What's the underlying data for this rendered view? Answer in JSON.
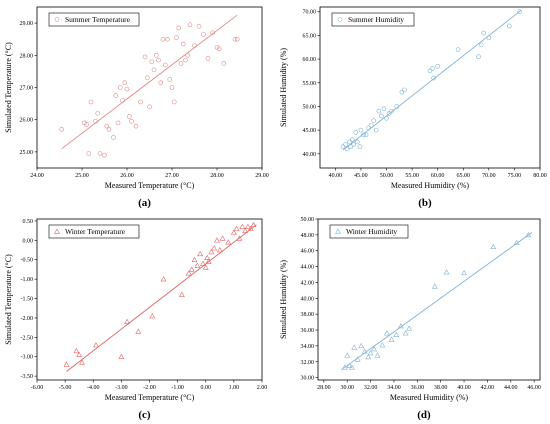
{
  "chart_data": [
    {
      "id": "a",
      "type": "scatter",
      "panel_label": "(a)",
      "xlabel": "Measured Temperature (°C)",
      "ylabel": "Simulated Temperature (°C)",
      "xlim": [
        24.0,
        29.0
      ],
      "ylim": [
        24.5,
        29.5
      ],
      "xticks": [
        "24.00",
        "25.00",
        "26.00",
        "27.00",
        "28.00",
        "29.00"
      ],
      "yticks": [
        "25.00",
        "26.00",
        "27.00",
        "28.00",
        "29.00"
      ],
      "xtick_values": [
        24,
        25,
        26,
        27,
        28,
        29
      ],
      "ytick_values": [
        25,
        26,
        27,
        28,
        29
      ],
      "color": "#e08a8a",
      "marker": "circle",
      "legend": "Summer Temperature",
      "fit_line": [
        [
          24.55,
          25.1
        ],
        [
          28.45,
          29.25
        ]
      ],
      "x": [
        24.55,
        25.05,
        25.1,
        25.15,
        25.2,
        25.3,
        25.35,
        25.4,
        25.5,
        25.55,
        25.6,
        25.7,
        25.75,
        25.8,
        25.85,
        25.9,
        25.95,
        26.0,
        26.05,
        26.1,
        26.2,
        26.3,
        26.4,
        26.45,
        26.5,
        26.55,
        26.6,
        26.65,
        26.7,
        26.75,
        26.8,
        26.85,
        26.9,
        26.95,
        27.0,
        27.05,
        27.1,
        27.15,
        27.2,
        27.25,
        27.3,
        27.35,
        27.4,
        27.5,
        27.6,
        27.7,
        27.8,
        27.9,
        28.0,
        28.05,
        28.15,
        28.4,
        28.45
      ],
      "y": [
        25.7,
        25.9,
        25.85,
        24.95,
        26.55,
        25.95,
        26.2,
        24.95,
        24.9,
        25.8,
        25.7,
        25.45,
        26.75,
        25.9,
        27.0,
        26.6,
        27.15,
        26.95,
        26.1,
        25.95,
        25.8,
        26.55,
        27.95,
        27.3,
        26.4,
        27.8,
        27.55,
        28.0,
        27.85,
        27.15,
        28.5,
        27.7,
        28.5,
        27.25,
        27.0,
        26.55,
        28.55,
        28.85,
        27.75,
        28.35,
        27.85,
        28.0,
        28.95,
        28.3,
        28.9,
        28.65,
        27.9,
        28.7,
        28.25,
        28.2,
        27.75,
        28.5,
        28.5
      ]
    },
    {
      "id": "b",
      "type": "scatter",
      "panel_label": "(b)",
      "xlabel": "Measured Humidity (%)",
      "ylabel": "Simulated Humidity (%)",
      "xlim": [
        37.0,
        80.0
      ],
      "ylim": [
        37.0,
        71.0
      ],
      "xticks": [
        "40.00",
        "45.00",
        "50.00",
        "55.00",
        "60.00",
        "65.00",
        "70.00",
        "75.00",
        "80.00"
      ],
      "yticks": [
        "40.00",
        "45.00",
        "50.00",
        "55.00",
        "60.00",
        "65.00",
        "70.00"
      ],
      "xtick_values": [
        40,
        45,
        50,
        55,
        60,
        65,
        70,
        75,
        80
      ],
      "ytick_values": [
        40,
        45,
        50,
        55,
        60,
        65,
        70
      ],
      "color": "#7fb3d5",
      "marker": "circle",
      "legend": "Summer Humidity",
      "fit_line": [
        [
          41.5,
          40.8
        ],
        [
          76.3,
          70.3
        ]
      ],
      "x": [
        41.5,
        42.0,
        42.3,
        42.8,
        43.0,
        43.3,
        43.6,
        44.0,
        44.3,
        44.8,
        45.0,
        45.5,
        46.0,
        46.5,
        47.0,
        47.5,
        48.0,
        48.5,
        49.0,
        49.5,
        50.0,
        50.5,
        51.0,
        52.0,
        53.0,
        53.5,
        58.5,
        59.0,
        59.2,
        60.0,
        64.0,
        68.0,
        68.5,
        69.0,
        70.0,
        74.0,
        76.0
      ],
      "y": [
        41.5,
        42.0,
        41.0,
        42.5,
        41.5,
        43.0,
        42.0,
        44.5,
        42.5,
        41.5,
        45.0,
        44.0,
        44.0,
        45.5,
        46.0,
        47.0,
        45.0,
        49.0,
        48.0,
        49.5,
        47.5,
        48.5,
        49.0,
        50.0,
        53.0,
        53.5,
        57.5,
        58.0,
        56.0,
        58.5,
        62.0,
        60.5,
        63.0,
        65.5,
        64.5,
        67.0,
        70.0
      ]
    },
    {
      "id": "c",
      "type": "scatter",
      "panel_label": "(c)",
      "xlabel": "Measured Temperature (°C)",
      "ylabel": "Simulated Temperature (°C)",
      "xlim": [
        -6.0,
        2.0
      ],
      "ylim": [
        -3.6,
        0.55
      ],
      "xticks": [
        "-6.00",
        "-5.00",
        "-4.00",
        "-3.00",
        "-2.00",
        "-1.00",
        "0.00",
        "1.00",
        "2.00"
      ],
      "yticks": [
        "-3.50",
        "-3.00",
        "-2.50",
        "-2.00",
        "-1.50",
        "-1.00",
        "-0.50",
        "0.00",
        "0.50"
      ],
      "xtick_values": [
        -6,
        -5,
        -4,
        -3,
        -2,
        -1,
        0,
        1,
        2
      ],
      "ytick_values": [
        -3.5,
        -3,
        -2.5,
        -2,
        -1.5,
        -1,
        -0.5,
        0,
        0.5
      ],
      "color": "#e06666",
      "marker": "triangle",
      "legend": "Winter Temperature",
      "fit_line": [
        [
          -4.95,
          -3.38
        ],
        [
          1.8,
          0.4
        ]
      ],
      "x": [
        -4.95,
        -4.6,
        -4.5,
        -4.4,
        -3.9,
        -3.0,
        -2.8,
        -2.4,
        -1.9,
        -1.5,
        -0.85,
        -0.6,
        -0.5,
        -0.4,
        -0.3,
        -0.2,
        -0.1,
        0.0,
        0.05,
        0.1,
        0.2,
        0.3,
        0.4,
        0.5,
        0.6,
        0.8,
        1.0,
        1.1,
        1.2,
        1.3,
        1.4,
        1.5,
        1.6,
        1.7
      ],
      "y": [
        -3.2,
        -2.85,
        -2.95,
        -3.15,
        -2.7,
        -3.0,
        -2.1,
        -2.35,
        -1.95,
        -1.0,
        -1.4,
        -0.85,
        -0.75,
        -0.5,
        -0.65,
        -0.35,
        -0.6,
        -0.7,
        -0.45,
        -0.55,
        -0.3,
        -0.2,
        0.0,
        -0.25,
        0.05,
        -0.05,
        0.2,
        0.3,
        0.05,
        0.35,
        0.25,
        0.35,
        0.3,
        0.4
      ]
    },
    {
      "id": "d",
      "type": "scatter",
      "panel_label": "(d)",
      "xlabel": "Measured Humidity (%)",
      "ylabel": "Simulated Humidity (%)",
      "xlim": [
        27.5,
        46.5
      ],
      "ylim": [
        29.7,
        50.0
      ],
      "xticks": [
        "28.00",
        "30.00",
        "32.00",
        "34.00",
        "36.00",
        "38.00",
        "40.00",
        "42.00",
        "44.00",
        "46.00"
      ],
      "yticks": [
        "30.00",
        "32.00",
        "34.00",
        "36.00",
        "38.00",
        "40.00",
        "42.00",
        "44.00",
        "46.00",
        "48.00",
        "50.00"
      ],
      "xtick_values": [
        28,
        30,
        32,
        34,
        36,
        38,
        40,
        42,
        44,
        46
      ],
      "ytick_values": [
        30,
        32,
        34,
        36,
        38,
        40,
        42,
        44,
        46,
        48,
        50
      ],
      "color": "#7fb3d5",
      "marker": "triangle",
      "legend": "Winter Humidity",
      "fit_line": [
        [
          29.5,
          31.0
        ],
        [
          45.8,
          48.3
        ]
      ],
      "x": [
        29.8,
        30.0,
        30.2,
        30.4,
        30.6,
        30.9,
        31.2,
        31.5,
        31.8,
        32.0,
        32.3,
        32.6,
        33.0,
        33.4,
        33.8,
        34.2,
        34.6,
        35.0,
        35.3,
        37.5,
        38.5,
        40.0,
        42.5,
        44.5,
        45.5
      ],
      "y": [
        31.3,
        32.8,
        31.5,
        31.3,
        33.8,
        32.3,
        34.0,
        33.3,
        32.6,
        33.1,
        33.6,
        32.8,
        34.1,
        35.6,
        34.8,
        35.4,
        36.5,
        35.6,
        36.2,
        41.5,
        43.3,
        43.2,
        46.5,
        47.0,
        48.0
      ]
    }
  ]
}
